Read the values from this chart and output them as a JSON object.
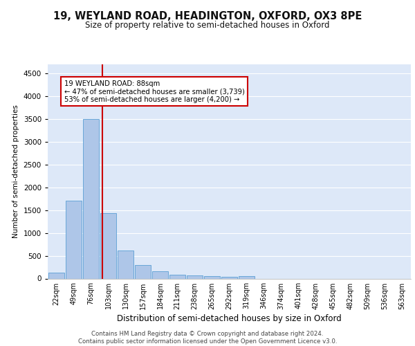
{
  "title1": "19, WEYLAND ROAD, HEADINGTON, OXFORD, OX3 8PE",
  "title2": "Size of property relative to semi-detached houses in Oxford",
  "xlabel": "Distribution of semi-detached houses by size in Oxford",
  "ylabel": "Number of semi-detached properties",
  "footer": "Contains HM Land Registry data © Crown copyright and database right 2024.\nContains public sector information licensed under the Open Government Licence v3.0.",
  "bar_labels": [
    "22sqm",
    "49sqm",
    "76sqm",
    "103sqm",
    "130sqm",
    "157sqm",
    "184sqm",
    "211sqm",
    "238sqm",
    "265sqm",
    "292sqm",
    "319sqm",
    "346sqm",
    "374sqm",
    "401sqm",
    "428sqm",
    "455sqm",
    "482sqm",
    "509sqm",
    "536sqm",
    "563sqm"
  ],
  "bar_values": [
    130,
    1700,
    3500,
    1430,
    610,
    290,
    160,
    90,
    65,
    50,
    40,
    50,
    0,
    0,
    0,
    0,
    0,
    0,
    0,
    0,
    0
  ],
  "bar_color": "#aec6e8",
  "bar_edge_color": "#5a9fd4",
  "ylim": [
    0,
    4700
  ],
  "yticks": [
    0,
    500,
    1000,
    1500,
    2000,
    2500,
    3000,
    3500,
    4000,
    4500
  ],
  "red_line_x": 2.64,
  "annotation_text": "19 WEYLAND ROAD: 88sqm\n← 47% of semi-detached houses are smaller (3,739)\n53% of semi-detached houses are larger (4,200) →",
  "annotation_box_color": "#ffffff",
  "annotation_box_edge": "#cc0000",
  "red_line_color": "#cc0000",
  "background_color": "#dde8f8",
  "grid_color": "#ffffff"
}
